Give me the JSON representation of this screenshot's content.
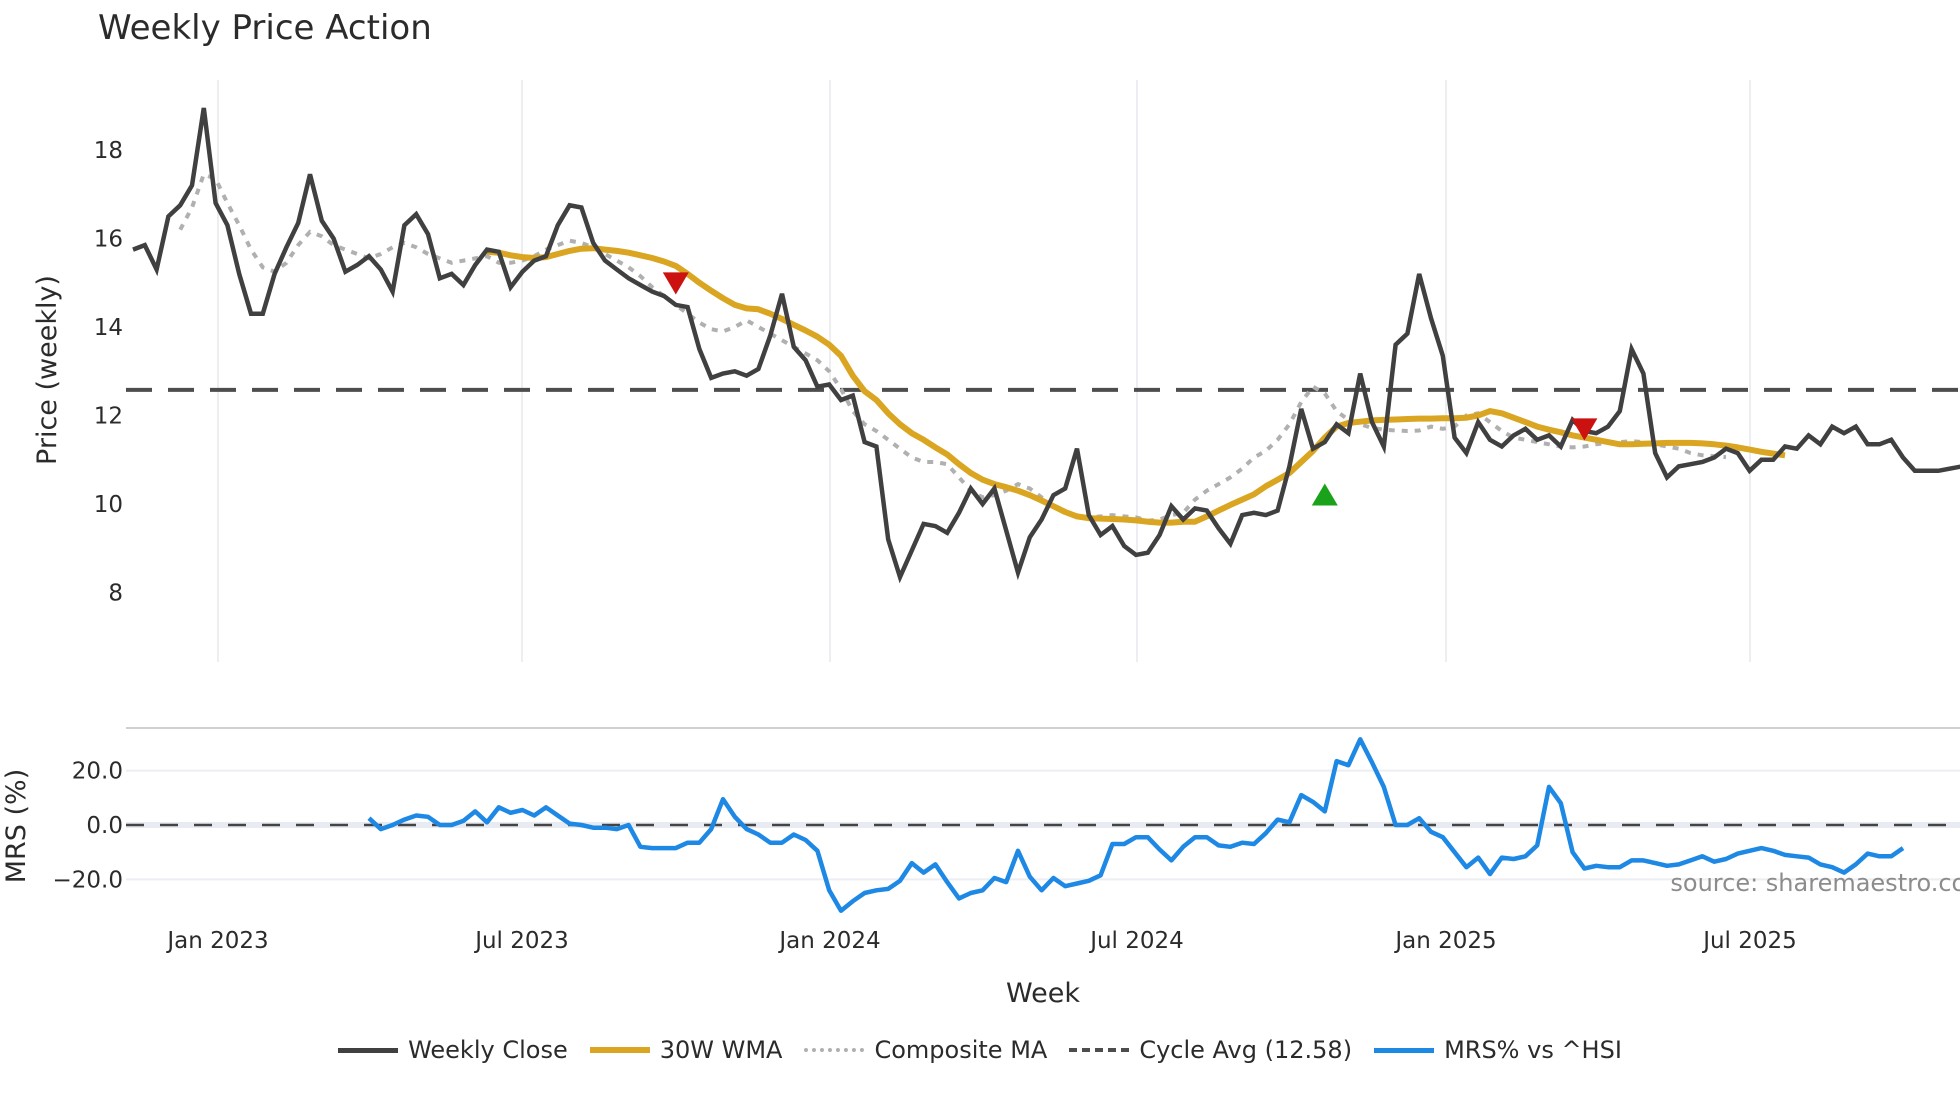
{
  "title": "Weekly Price Action",
  "source_note": "source: sharemaestro.com",
  "colors": {
    "weekly_close": "#404040",
    "wma": "#DAA520",
    "composite": "#b0b0b0",
    "cycle_avg": "#4d4d4d",
    "mrs": "#1E88E5",
    "grid": "#eceef2",
    "buy_marker": "#1aa31a",
    "sell_marker": "#cc1111"
  },
  "legend": [
    {
      "key": "weekly_close",
      "label": "Weekly Close",
      "style": "solid"
    },
    {
      "key": "wma",
      "label": "30W WMA",
      "style": "solid"
    },
    {
      "key": "composite",
      "label": "Composite MA",
      "style": "dotted"
    },
    {
      "key": "cycle_avg",
      "label": "Cycle Avg (12.58)",
      "style": "dashed"
    },
    {
      "key": "mrs",
      "label": "MRS% vs ^HSI",
      "style": "solid"
    }
  ],
  "chart_data": [
    {
      "type": "line",
      "title": "Weekly Price Action",
      "xlabel": "Week",
      "ylabel": "Price (weekly)",
      "ylim": [
        7.7,
        19.3
      ],
      "yticks": [
        8,
        10,
        12,
        14,
        16,
        18
      ],
      "xticks": [
        "Jan 2023",
        "Jul 2023",
        "Jan 2024",
        "Jul 2024",
        "Jan 2025",
        "Jul 2025"
      ],
      "x_start": "2022-11 (approx, weekly)",
      "cycle_avg": 12.58,
      "series": [
        {
          "name": "Weekly Close",
          "start_index": 0,
          "values": [
            15.75,
            15.85,
            15.3,
            16.5,
            16.75,
            17.2,
            18.95,
            16.8,
            16.3,
            15.2,
            14.3,
            14.3,
            15.2,
            15.8,
            16.35,
            17.45,
            16.4,
            16.0,
            15.25,
            15.4,
            15.6,
            15.3,
            14.8,
            16.3,
            16.55,
            16.1,
            15.1,
            15.2,
            14.95,
            15.4,
            15.75,
            15.7,
            14.9,
            15.25,
            15.5,
            15.6,
            16.3,
            16.75,
            16.7,
            15.9,
            15.5,
            15.3,
            15.1,
            14.95,
            14.8,
            14.7,
            14.5,
            14.45,
            13.5,
            12.85,
            12.95,
            13.0,
            12.9,
            13.05,
            13.8,
            14.75,
            13.55,
            13.25,
            12.65,
            12.7,
            12.35,
            12.45,
            11.4,
            11.3,
            9.2,
            8.35,
            8.95,
            9.55,
            9.5,
            9.35,
            9.8,
            10.35,
            10.0,
            10.35,
            9.4,
            8.45,
            9.25,
            9.65,
            10.2,
            10.35,
            11.25,
            9.75,
            9.3,
            9.5,
            9.05,
            8.85,
            8.9,
            9.3,
            9.95,
            9.65,
            9.9,
            9.85,
            9.45,
            9.1,
            9.75,
            9.8,
            9.75,
            9.85,
            10.85,
            12.15,
            11.25,
            11.4,
            11.8,
            11.6,
            12.95,
            11.85,
            11.3,
            13.6,
            13.85,
            15.2,
            14.2,
            13.35,
            11.5,
            11.15,
            11.85,
            11.45,
            11.3,
            11.55,
            11.7,
            11.45,
            11.55,
            11.3,
            11.9,
            11.65,
            11.6,
            11.75,
            12.1,
            13.5,
            12.95,
            11.15,
            10.6,
            10.85,
            10.9,
            10.95,
            11.05,
            11.25,
            11.15,
            10.75,
            11.0,
            11.0,
            11.3,
            11.25,
            11.55,
            11.35,
            11.75,
            11.6,
            11.75,
            11.35,
            11.35,
            11.45,
            11.05,
            10.75,
            10.75,
            10.75,
            10.8,
            10.85,
            10.95,
            11.1
          ]
        },
        {
          "name": "30W WMA",
          "start_index": 30,
          "values": [
            15.7,
            15.68,
            15.62,
            15.58,
            15.56,
            15.58,
            15.65,
            15.72,
            15.77,
            15.78,
            15.75,
            15.72,
            15.68,
            15.62,
            15.56,
            15.48,
            15.38,
            15.2,
            15.0,
            14.82,
            14.65,
            14.5,
            14.42,
            14.4,
            14.3,
            14.18,
            14.05,
            13.92,
            13.78,
            13.6,
            13.35,
            12.9,
            12.55,
            12.35,
            12.05,
            11.8,
            11.6,
            11.45,
            11.28,
            11.12,
            10.9,
            10.7,
            10.55,
            10.45,
            10.38,
            10.3,
            10.2,
            10.08,
            9.95,
            9.82,
            9.72,
            9.68,
            9.67,
            9.66,
            9.65,
            9.63,
            9.6,
            9.58,
            9.58,
            9.6,
            9.6,
            9.72,
            9.85,
            9.98,
            10.1,
            10.22,
            10.4,
            10.55,
            10.7,
            10.95,
            11.2,
            11.5,
            11.75,
            11.83,
            11.86,
            11.89,
            11.9,
            11.91,
            11.92,
            11.93,
            11.93,
            11.94,
            11.94,
            11.95,
            12.0,
            12.1,
            12.05,
            11.95,
            11.85,
            11.75,
            11.68,
            11.62,
            11.55,
            11.5,
            11.45,
            11.4,
            11.35,
            11.35,
            11.36,
            11.37,
            11.38,
            11.38,
            11.38,
            11.37,
            11.35,
            11.32,
            11.28,
            11.23,
            11.18,
            11.14,
            11.1
          ]
        },
        {
          "name": "Composite MA",
          "start_index": 4,
          "values": [
            16.2,
            16.7,
            17.45,
            17.35,
            16.8,
            16.3,
            15.75,
            15.35,
            15.25,
            15.45,
            15.85,
            16.15,
            16.05,
            15.85,
            15.75,
            15.65,
            15.55,
            15.65,
            15.8,
            15.9,
            15.8,
            15.65,
            15.55,
            15.45,
            15.5,
            15.55,
            15.6,
            15.45,
            15.45,
            15.5,
            15.6,
            15.75,
            15.85,
            15.95,
            15.9,
            15.8,
            15.65,
            15.5,
            15.35,
            15.15,
            14.9,
            14.7,
            14.5,
            14.3,
            14.1,
            13.95,
            13.9,
            14.0,
            14.15,
            14.0,
            13.85,
            13.7,
            13.55,
            13.4,
            13.25,
            13.0,
            12.6,
            12.1,
            11.8,
            11.65,
            11.45,
            11.25,
            11.05,
            10.95,
            10.95,
            10.9,
            10.6,
            10.3,
            10.15,
            10.2,
            10.3,
            10.45,
            10.35,
            10.15,
            9.95,
            9.8,
            9.72,
            9.7,
            9.72,
            9.75,
            9.72,
            9.7,
            9.62,
            9.65,
            9.75,
            9.8,
            10.1,
            10.3,
            10.45,
            10.6,
            10.8,
            11.05,
            11.2,
            11.45,
            11.8,
            12.3,
            12.65,
            12.5,
            12.1,
            11.9,
            11.8,
            11.72,
            11.68,
            11.66,
            11.65,
            11.66,
            11.75,
            11.7,
            11.75,
            12.0,
            12.05,
            11.85,
            11.65,
            11.5,
            11.45,
            11.4,
            11.35,
            11.3,
            11.28,
            11.3,
            11.35,
            11.38,
            11.4,
            11.42,
            11.4,
            11.35,
            11.3,
            11.25,
            11.15,
            11.1,
            11.08,
            11.06
          ]
        },
        {
          "name": "Cycle Avg (12.58)",
          "values": [
            12.58
          ]
        }
      ],
      "markers": [
        {
          "type": "sell",
          "shape": "triangle-down",
          "index": 46,
          "value": 15.0
        },
        {
          "type": "buy",
          "shape": "triangle-up",
          "index": 101,
          "value": 10.2
        },
        {
          "type": "sell",
          "shape": "triangle-down",
          "index": 123,
          "value": 11.7
        }
      ],
      "grid": "vertical only",
      "legend_position": "bottom"
    },
    {
      "type": "line",
      "title": "",
      "xlabel": "Week",
      "ylabel": "MRS (%)",
      "ylim": [
        -35,
        36
      ],
      "yticks": [
        "20.0",
        "0.0",
        "−20.0"
      ],
      "zero_line": 0.0,
      "series": [
        {
          "name": "MRS% vs ^HSI",
          "start_index": 20,
          "values": [
            2.5,
            -1.5,
            0.0,
            2.0,
            3.5,
            3.0,
            0.0,
            0.0,
            1.5,
            5.0,
            1.0,
            6.5,
            4.5,
            5.5,
            3.5,
            6.5,
            3.5,
            0.5,
            0.0,
            -1.0,
            -1.0,
            -1.5,
            0.0,
            -8.0,
            -8.5,
            -8.5,
            -8.5,
            -6.5,
            -6.5,
            -1.5,
            9.5,
            3.0,
            -1.5,
            -3.5,
            -6.5,
            -6.5,
            -3.5,
            -5.5,
            -9.5,
            -24.0,
            -31.5,
            -28.0,
            -25.0,
            -24.0,
            -23.5,
            -20.5,
            -14.0,
            -17.5,
            -14.5,
            -21.0,
            -27.0,
            -25.0,
            -24.0,
            -19.5,
            -21.0,
            -9.5,
            -19.0,
            -24.0,
            -19.5,
            -22.5,
            -21.5,
            -20.5,
            -18.5,
            -7.0,
            -7.0,
            -4.5,
            -4.5,
            -9.0,
            -13.0,
            -8.0,
            -4.5,
            -4.5,
            -7.5,
            -8.0,
            -6.5,
            -7.0,
            -3.0,
            2.0,
            1.0,
            11.0,
            8.5,
            5.0,
            23.5,
            22.0,
            31.5,
            23.0,
            14.0,
            0.0,
            0.0,
            2.5,
            -2.5,
            -4.5,
            -10.0,
            -15.5,
            -12.0,
            -18.0,
            -12.0,
            -12.5,
            -11.5,
            -7.5,
            14.0,
            8.0,
            -10.0,
            -16.0,
            -15.0,
            -15.5,
            -15.5,
            -13.0,
            -13.0,
            -14.0,
            -15.0,
            -14.5,
            -13.0,
            -11.5,
            -13.5,
            -12.5,
            -10.5,
            -9.5,
            -8.5,
            -9.5,
            -11.0,
            -11.5,
            -12.0,
            -14.5,
            -15.5,
            -17.5,
            -14.5,
            -10.5,
            -11.5,
            -11.5,
            -8.5
          ]
        }
      ],
      "grid": "horizontal"
    }
  ],
  "axes": {
    "price_ylabel": "Price (weekly)",
    "price_yticks": [
      "18",
      "16",
      "14",
      "12",
      "10",
      "8"
    ],
    "mrs_ylabel": "MRS (%)",
    "mrs_yticks": [
      "20.0",
      "0.0",
      "−20.0"
    ],
    "xticks": [
      "Jan 2023",
      "Jul 2023",
      "Jan 2024",
      "Jul 2024",
      "Jan 2025",
      "Jul 2025"
    ],
    "xlabel": "Week"
  }
}
